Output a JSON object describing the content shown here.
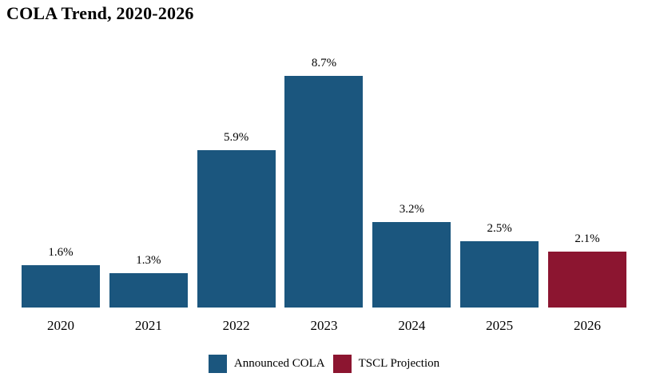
{
  "chart_data": {
    "type": "bar",
    "title": "COLA Trend, 2020-2026",
    "categories": [
      "2020",
      "2021",
      "2022",
      "2023",
      "2024",
      "2025",
      "2026"
    ],
    "values": [
      1.6,
      1.3,
      5.9,
      8.7,
      3.2,
      2.5,
      2.1
    ],
    "point_labels": [
      "1.6%",
      "1.3%",
      "5.9%",
      "8.7%",
      "3.2%",
      "2.5%",
      "2.1%"
    ],
    "series_of_point": [
      "announced",
      "announced",
      "announced",
      "announced",
      "announced",
      "announced",
      "projection"
    ],
    "legend": [
      {
        "id": "announced",
        "label": "Announced COLA",
        "color": "#1b567e"
      },
      {
        "id": "projection",
        "label": "TSCL Projection",
        "color": "#8c1530"
      }
    ],
    "xlabel": "",
    "ylabel": "",
    "grid": false,
    "y_axis_visible": false,
    "x_axis_visible": false,
    "legend_position": "bottom-center",
    "background_color": "#ffffff",
    "text_color": "#000000"
  }
}
